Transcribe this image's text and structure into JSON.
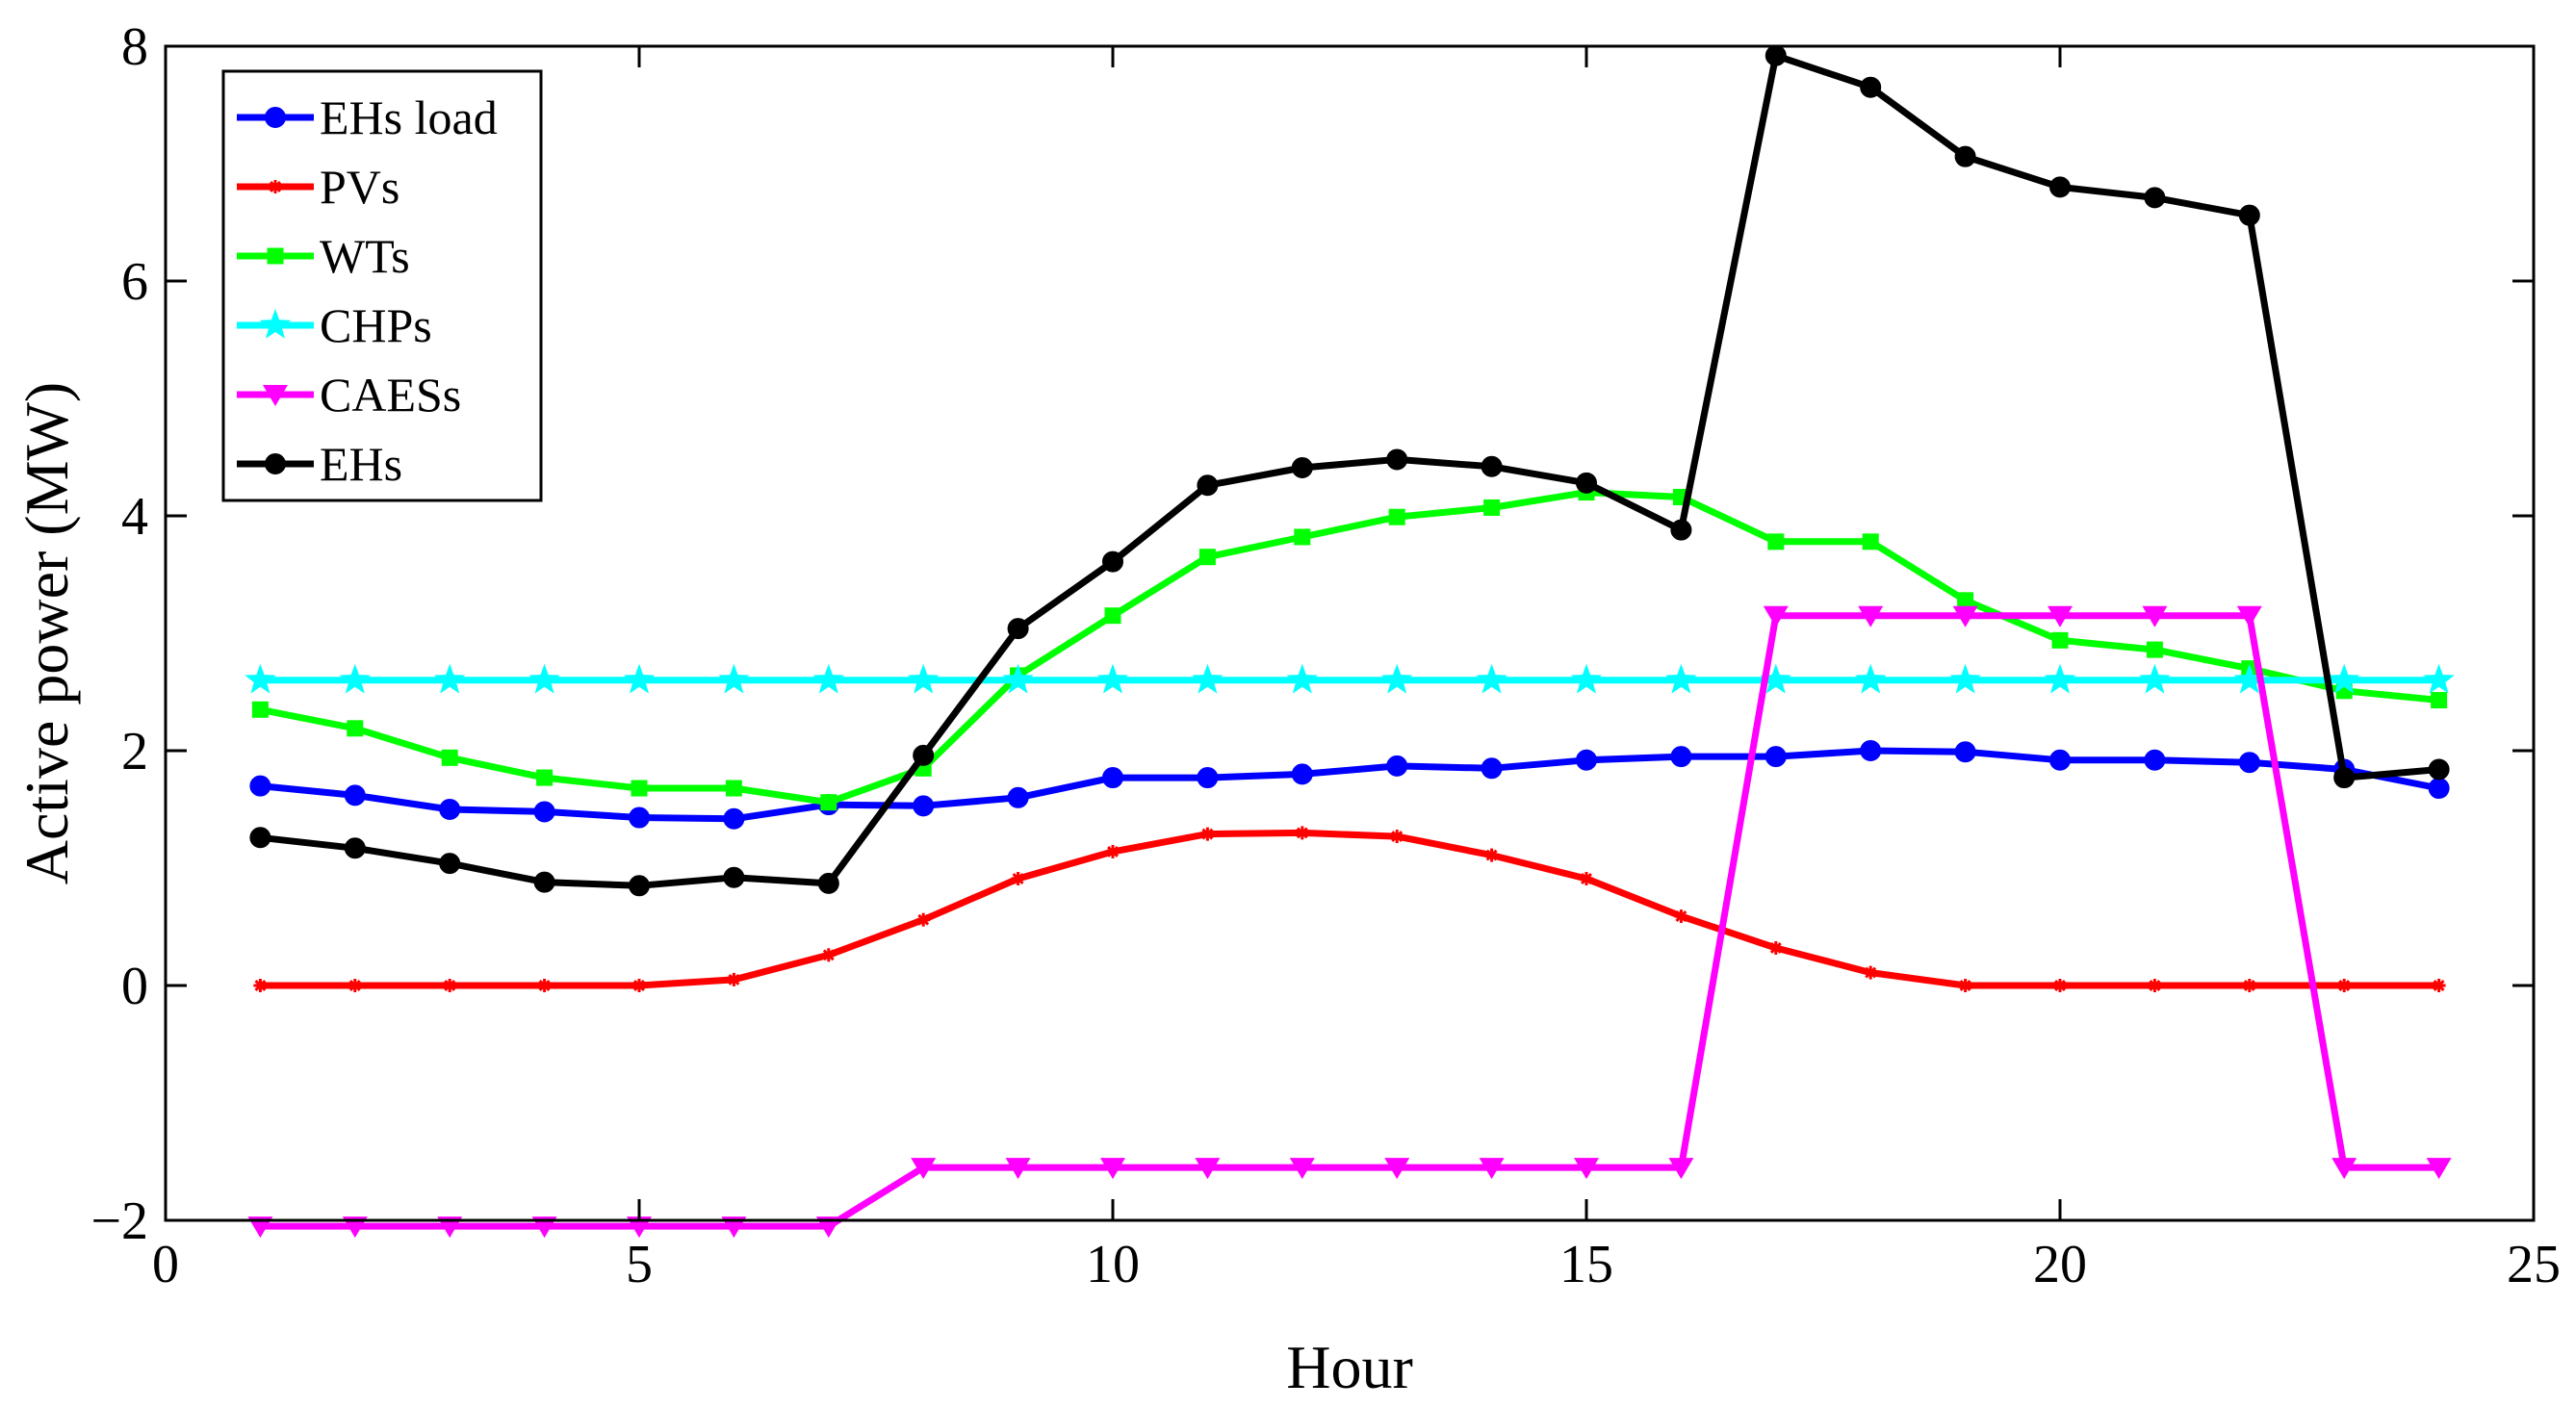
{
  "chart_data": {
    "type": "line",
    "xlabel": "Hour",
    "ylabel": "Active power (MW)",
    "xlim": [
      0,
      25
    ],
    "ylim": [
      -2,
      8
    ],
    "xticks": [
      0,
      5,
      10,
      15,
      20,
      25
    ],
    "yticks": [
      -2,
      0,
      2,
      4,
      6,
      8
    ],
    "xtick_labels": [
      "0",
      "5",
      "10",
      "15",
      "20",
      "25"
    ],
    "ytick_labels": [
      "−2",
      "0",
      "2",
      "4",
      "6",
      "8"
    ],
    "grid": false,
    "legend_position": "top-left",
    "x": [
      1,
      2,
      3,
      4,
      5,
      6,
      7,
      8,
      9,
      10,
      11,
      12,
      13,
      14,
      15,
      16,
      17,
      18,
      19,
      20,
      21,
      22,
      23,
      24
    ],
    "series": [
      {
        "name": "EHs load",
        "color": "#0000ff",
        "marker": "circle",
        "values": [
          1.7,
          1.62,
          1.5,
          1.48,
          1.43,
          1.42,
          1.54,
          1.53,
          1.6,
          1.77,
          1.77,
          1.8,
          1.87,
          1.85,
          1.92,
          1.95,
          1.95,
          2.0,
          1.99,
          1.92,
          1.92,
          1.9,
          1.84,
          1.68
        ]
      },
      {
        "name": "PVs",
        "color": "#ff0000",
        "marker": "asterisk",
        "values": [
          0,
          0,
          0,
          0,
          0,
          0.05,
          0.26,
          0.56,
          0.91,
          1.14,
          1.29,
          1.3,
          1.27,
          1.11,
          0.91,
          0.59,
          0.32,
          0.11,
          0,
          0,
          0,
          0,
          0,
          0
        ]
      },
      {
        "name": "WTs",
        "color": "#00ff00",
        "marker": "square",
        "values": [
          2.35,
          2.19,
          1.94,
          1.77,
          1.68,
          1.68,
          1.56,
          1.85,
          2.64,
          3.15,
          3.65,
          3.82,
          3.99,
          4.07,
          4.2,
          4.16,
          3.78,
          3.78,
          3.28,
          2.94,
          2.86,
          2.7,
          2.51,
          2.43
        ]
      },
      {
        "name": "CHPs",
        "color": "#00ffff",
        "marker": "star",
        "values": [
          2.6,
          2.6,
          2.6,
          2.6,
          2.6,
          2.6,
          2.6,
          2.6,
          2.6,
          2.6,
          2.6,
          2.6,
          2.6,
          2.6,
          2.6,
          2.6,
          2.6,
          2.6,
          2.6,
          2.6,
          2.6,
          2.6,
          2.6,
          2.6
        ]
      },
      {
        "name": "CAESs",
        "color": "#ff00ff",
        "marker": "triangle-down",
        "values": [
          -2.05,
          -2.05,
          -2.05,
          -2.05,
          -2.05,
          -2.05,
          -2.05,
          -1.55,
          -1.55,
          -1.55,
          -1.55,
          -1.55,
          -1.55,
          -1.55,
          -1.55,
          -1.55,
          3.15,
          3.15,
          3.15,
          3.15,
          3.15,
          3.15,
          -1.55,
          -1.55
        ]
      },
      {
        "name": "EHs",
        "color": "#000000",
        "marker": "circle",
        "values": [
          1.26,
          1.17,
          1.04,
          0.88,
          0.85,
          0.92,
          0.87,
          1.96,
          3.04,
          3.61,
          4.26,
          4.41,
          4.48,
          4.42,
          4.28,
          3.88,
          7.92,
          7.65,
          7.06,
          6.8,
          6.71,
          6.56,
          1.77,
          1.84
        ]
      }
    ]
  }
}
